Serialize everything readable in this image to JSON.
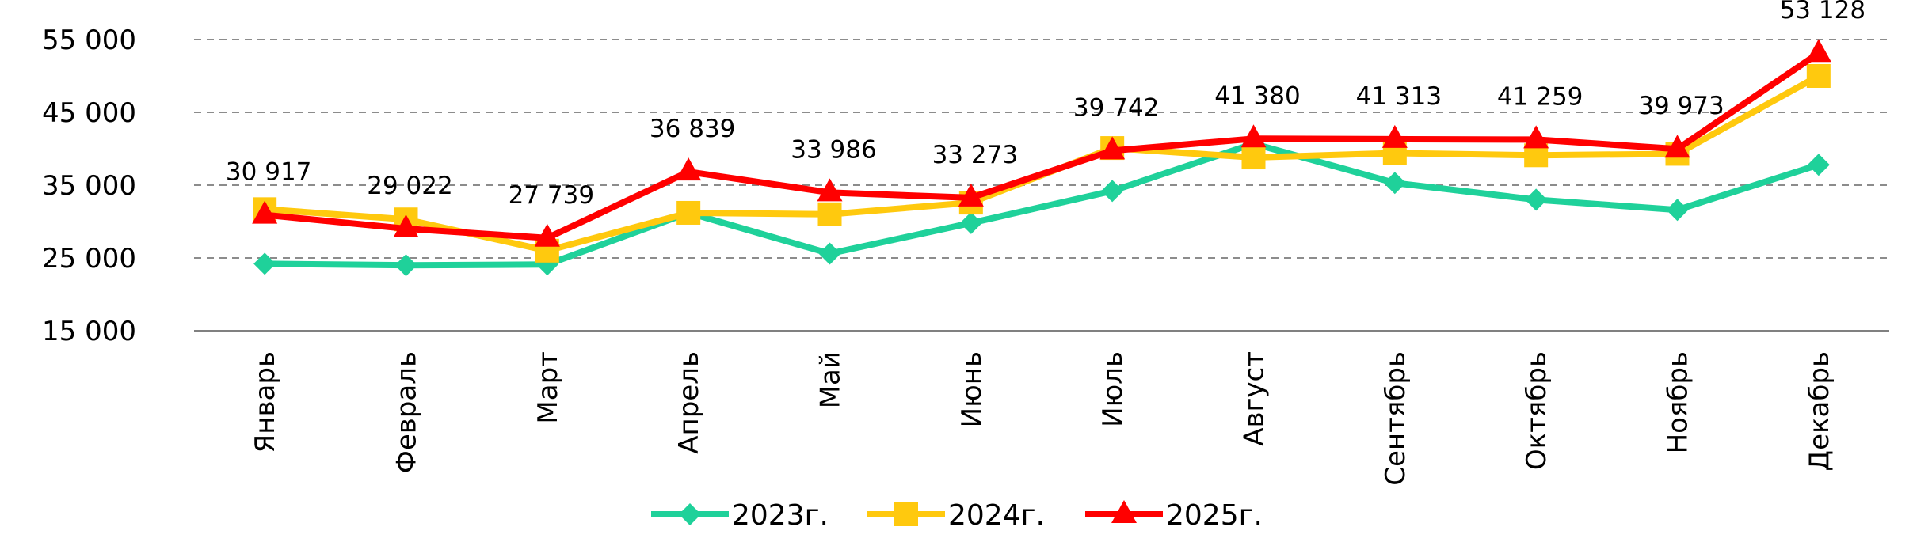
{
  "chart_data": {
    "type": "line",
    "categories": [
      "Январь",
      "Февраль",
      "Март",
      "Апрель",
      "Май",
      "Июнь",
      "Июль",
      "Август",
      "Сентябрь",
      "Октябрь",
      "Ноябрь",
      "Декабрь"
    ],
    "ylim": [
      15000,
      55000
    ],
    "yticks": [
      15000,
      25000,
      35000,
      45000,
      55000
    ],
    "ytick_labels": [
      "15 000",
      "25 000",
      "35 000",
      "45 000",
      "55 000"
    ],
    "grid": "horizontal dashed",
    "legend_position": "bottom",
    "series": [
      {
        "name": "2023г.",
        "color": "#1FD19A",
        "marker": "diamond",
        "values": [
          24200,
          24000,
          24100,
          31200,
          25600,
          29800,
          34200,
          40700,
          35300,
          33000,
          31600,
          37800
        ]
      },
      {
        "name": "2024г.",
        "color": "#FFC90E",
        "marker": "square",
        "values": [
          31700,
          30300,
          26000,
          31200,
          31000,
          32600,
          40100,
          38800,
          39400,
          39100,
          39300,
          50000
        ]
      },
      {
        "name": "2025г.",
        "color": "#FF0000",
        "marker": "triangle",
        "values": [
          30917,
          29022,
          27739,
          36839,
          33986,
          33273,
          39742,
          41380,
          41313,
          41259,
          39973,
          53128
        ]
      }
    ],
    "data_labels": [
      "30 917",
      "29 022",
      "27 739",
      "36 839",
      "33 986",
      "33 273",
      "39 742",
      "41 380",
      "41 313",
      "41 259",
      "39 973",
      "53 128"
    ]
  }
}
